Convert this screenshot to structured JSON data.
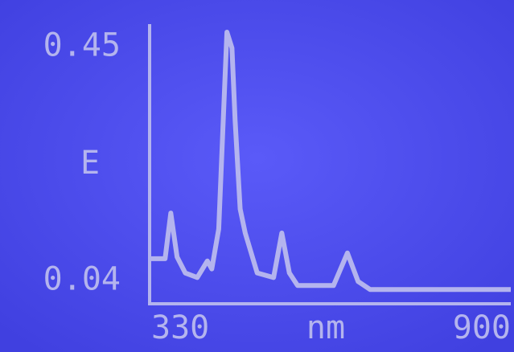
{
  "chart_data": {
    "type": "line",
    "y_label": "E",
    "x_label": "nm",
    "x": [
      330,
      352,
      361,
      371,
      384,
      403,
      419,
      426,
      437,
      450,
      458,
      463,
      471,
      479,
      498,
      524,
      537,
      549,
      562,
      619,
      641,
      658,
      677,
      900
    ],
    "series": [
      {
        "color": "#b4b4ee",
        "values": [
          0.079,
          0.079,
          0.159,
          0.082,
          0.054,
          0.046,
          0.075,
          0.061,
          0.131,
          0.476,
          0.448,
          0.321,
          0.166,
          0.124,
          0.054,
          0.046,
          0.124,
          0.054,
          0.032,
          0.032,
          0.089,
          0.039,
          0.025,
          0.025
        ]
      }
    ],
    "xlim": [
      330,
      900
    ],
    "xticks": [
      330,
      900
    ],
    "ylim": [
      0,
      0.49
    ],
    "yticks": [
      0.04,
      0.45
    ]
  }
}
